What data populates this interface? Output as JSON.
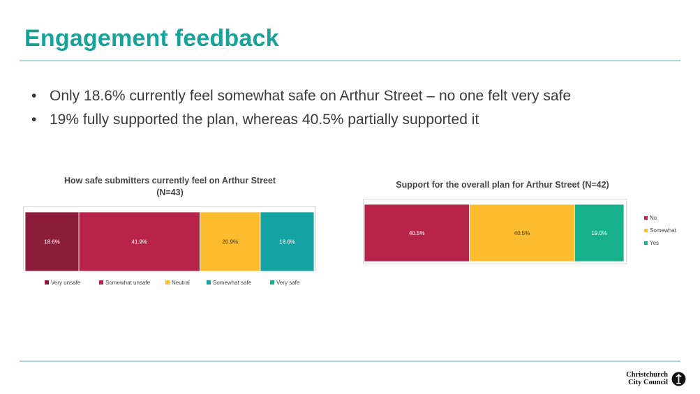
{
  "slide": {
    "title": "Engagement feedback",
    "bullets": [
      "Only 18.6% currently feel somewhat safe on Arthur Street – no one felt very safe",
      "19% fully supported the plan, whereas 40.5% partially supported it"
    ]
  },
  "logo": {
    "line1": "Christchurch",
    "line2": "City Council",
    "icon": "christchurch-logo-icon"
  },
  "chart_data": [
    {
      "type": "bar",
      "orientation": "horizontal-stacked-100",
      "title_line1": "How safe submitters currently feel on Arthur Street",
      "title_line2": "(N=43)",
      "categories": [
        "Very unsafe",
        "Somewhat unsafe",
        "Neutral",
        "Somewhat safe",
        "Very safe"
      ],
      "values": [
        18.6,
        41.9,
        20.9,
        18.6,
        0
      ],
      "labels": [
        "18.6%",
        "41.9%",
        "20.9%",
        "18.6%",
        ""
      ],
      "colors": [
        "#8b1d3b",
        "#b8234a",
        "#fbbd2d",
        "#14a3a3",
        "#16b08a"
      ],
      "legend": "bottom"
    },
    {
      "type": "bar",
      "orientation": "horizontal-stacked-100",
      "title_line1": "Support for the overall plan for Arthur Street (N=42)",
      "categories": [
        "No",
        "Somewhat",
        "Yes"
      ],
      "values": [
        40.5,
        40.5,
        19.0
      ],
      "labels": [
        "40.5%",
        "40.5%",
        "19.0%"
      ],
      "colors": [
        "#b8234a",
        "#fbbd2d",
        "#16b08a"
      ],
      "legend": "right"
    }
  ]
}
